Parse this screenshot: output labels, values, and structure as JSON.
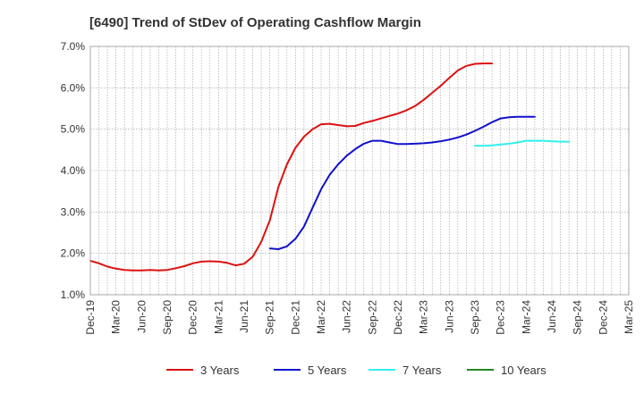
{
  "chart_data": {
    "type": "line",
    "title": "[6490]  Trend of StDev of Operating Cashflow Margin",
    "xlabel": "",
    "ylabel": "",
    "x_ticks": [
      "Dec-19",
      "Mar-20",
      "Jun-20",
      "Sep-20",
      "Dec-20",
      "Mar-21",
      "Jun-21",
      "Sep-21",
      "Dec-21",
      "Mar-22",
      "Jun-22",
      "Sep-22",
      "Dec-22",
      "Mar-23",
      "Jun-23",
      "Sep-23",
      "Dec-23",
      "Mar-24",
      "Jun-24",
      "Sep-24",
      "Dec-24",
      "Mar-25"
    ],
    "y_ticks": [
      "1.0%",
      "2.0%",
      "3.0%",
      "4.0%",
      "5.0%",
      "6.0%",
      "7.0%"
    ],
    "ylim": [
      1.0,
      7.0
    ],
    "grid": true,
    "legend_position": "bottom",
    "series": [
      {
        "name": "3 Years",
        "color": "#dd1111",
        "start": "Dec-19",
        "values": [
          1.82,
          1.76,
          1.68,
          1.63,
          1.6,
          1.59,
          1.59,
          1.6,
          1.59,
          1.6,
          1.64,
          1.69,
          1.76,
          1.8,
          1.81,
          1.8,
          1.77,
          1.71,
          1.75,
          1.92,
          2.28,
          2.8,
          3.6,
          4.15,
          4.55,
          4.82,
          5.0,
          5.12,
          5.13,
          5.1,
          5.07,
          5.08,
          5.15,
          5.2,
          5.26,
          5.32,
          5.38,
          5.46,
          5.56,
          5.71,
          5.88,
          6.05,
          6.24,
          6.42,
          6.53,
          6.58,
          6.59,
          6.59
        ]
      },
      {
        "name": "5 Years",
        "color": "#1111cc",
        "start": "Sep-21",
        "values": [
          2.12,
          2.1,
          2.17,
          2.35,
          2.65,
          3.1,
          3.55,
          3.9,
          4.15,
          4.36,
          4.52,
          4.65,
          4.72,
          4.72,
          4.68,
          4.64,
          4.64,
          4.65,
          4.66,
          4.68,
          4.71,
          4.75,
          4.8,
          4.87,
          4.96,
          5.06,
          5.17,
          5.26,
          5.29,
          5.3,
          5.3,
          5.3
        ]
      },
      {
        "name": "7 Years",
        "color": "#33eeee",
        "start": "Sep-23",
        "values": [
          4.6,
          4.6,
          4.61,
          4.63,
          4.65,
          4.68,
          4.72,
          4.72,
          4.72,
          4.71,
          4.7,
          4.7
        ]
      },
      {
        "name": "10 Years",
        "color": "#228822",
        "start": "Sep-23",
        "values": []
      }
    ]
  }
}
